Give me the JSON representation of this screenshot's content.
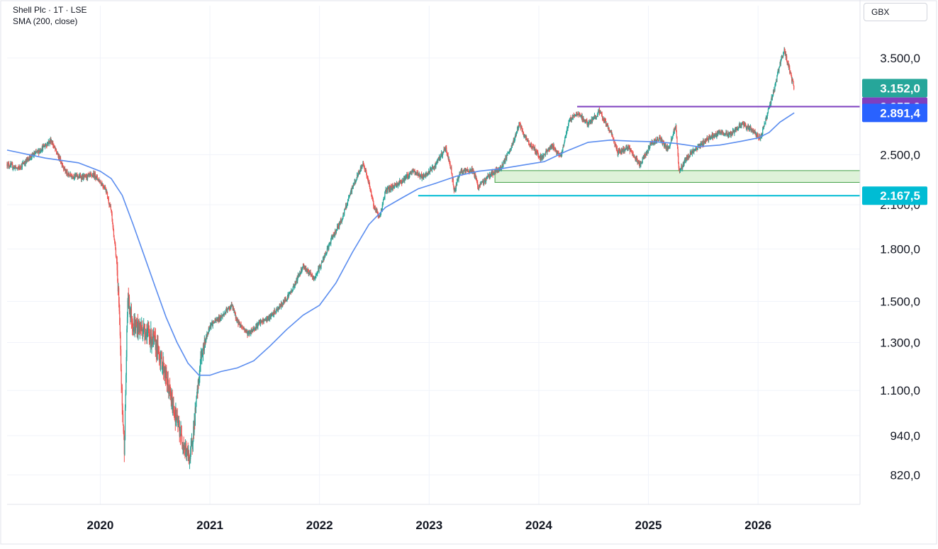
{
  "legend": {
    "symbol": "Shell Plc · 1T · LSE",
    "indicator": "SMA (200, close)"
  },
  "currency": "GBX",
  "colors": {
    "up": "#26a69a",
    "down": "#ef5350",
    "sma": "#5b8def",
    "resistance": "#7e3fbf",
    "support": "#00bcd4",
    "zone_fill": "#d8f0d2",
    "zone_stroke": "#43a047"
  },
  "chart_data": {
    "type": "candlestick",
    "title": "",
    "xlabel": "",
    "ylabel": "",
    "y_scale": "log",
    "ylim": [
      740,
      3900
    ],
    "xlim": [
      2019.15,
      2026.93
    ],
    "grid": true,
    "y_ticks": [
      {
        "value": 3500,
        "label": "3.500,0"
      },
      {
        "value": 2500,
        "label": "2.500,0"
      },
      {
        "value": 2100,
        "label": "2.100,0"
      },
      {
        "value": 1800,
        "label": "1.800,0"
      },
      {
        "value": 1500,
        "label": "1.500,0"
      },
      {
        "value": 1300,
        "label": "1.300,0"
      },
      {
        "value": 1100,
        "label": "1.100,0"
      },
      {
        "value": 940,
        "label": "940,0"
      },
      {
        "value": 820,
        "label": "820,0"
      }
    ],
    "x_ticks": [
      {
        "value": 2020.0,
        "label": "2020"
      },
      {
        "value": 2021.0,
        "label": "2021"
      },
      {
        "value": 2022.0,
        "label": "2022"
      },
      {
        "value": 2023.0,
        "label": "2023"
      },
      {
        "value": 2024.0,
        "label": "2024"
      },
      {
        "value": 2025.0,
        "label": "2025"
      },
      {
        "value": 2026.0,
        "label": "2026"
      }
    ],
    "price_anchors": [
      [
        2019.15,
        2420
      ],
      [
        2019.25,
        2380
      ],
      [
        2019.35,
        2470
      ],
      [
        2019.45,
        2540
      ],
      [
        2019.55,
        2630
      ],
      [
        2019.6,
        2520
      ],
      [
        2019.7,
        2330
      ],
      [
        2019.85,
        2310
      ],
      [
        2019.95,
        2330
      ],
      [
        2020.05,
        2220
      ],
      [
        2020.1,
        2050
      ],
      [
        2020.15,
        1720
      ],
      [
        2020.17,
        1480
      ],
      [
        2020.2,
        1040
      ],
      [
        2020.22,
        900
      ],
      [
        2020.25,
        1520
      ],
      [
        2020.3,
        1380
      ],
      [
        2020.4,
        1360
      ],
      [
        2020.5,
        1300
      ],
      [
        2020.58,
        1190
      ],
      [
        2020.65,
        1060
      ],
      [
        2020.72,
        960
      ],
      [
        2020.78,
        890
      ],
      [
        2020.82,
        870
      ],
      [
        2020.86,
        990
      ],
      [
        2020.92,
        1240
      ],
      [
        2021.0,
        1380
      ],
      [
        2021.1,
        1420
      ],
      [
        2021.2,
        1480
      ],
      [
        2021.25,
        1400
      ],
      [
        2021.35,
        1340
      ],
      [
        2021.45,
        1390
      ],
      [
        2021.55,
        1420
      ],
      [
        2021.65,
        1480
      ],
      [
        2021.75,
        1560
      ],
      [
        2021.85,
        1700
      ],
      [
        2021.95,
        1620
      ],
      [
        2022.05,
        1760
      ],
      [
        2022.12,
        1880
      ],
      [
        2022.2,
        1990
      ],
      [
        2022.3,
        2230
      ],
      [
        2022.4,
        2430
      ],
      [
        2022.45,
        2260
      ],
      [
        2022.5,
        2080
      ],
      [
        2022.55,
        2010
      ],
      [
        2022.6,
        2200
      ],
      [
        2022.75,
        2280
      ],
      [
        2022.85,
        2360
      ],
      [
        2022.95,
        2310
      ],
      [
        2023.05,
        2400
      ],
      [
        2023.15,
        2560
      ],
      [
        2023.2,
        2380
      ],
      [
        2023.23,
        2200
      ],
      [
        2023.28,
        2350
      ],
      [
        2023.4,
        2370
      ],
      [
        2023.45,
        2230
      ],
      [
        2023.55,
        2330
      ],
      [
        2023.65,
        2380
      ],
      [
        2023.75,
        2560
      ],
      [
        2023.82,
        2780
      ],
      [
        2023.88,
        2640
      ],
      [
        2023.95,
        2560
      ],
      [
        2024.02,
        2470
      ],
      [
        2024.12,
        2580
      ],
      [
        2024.2,
        2490
      ],
      [
        2024.28,
        2820
      ],
      [
        2024.35,
        2890
      ],
      [
        2024.45,
        2780
      ],
      [
        2024.55,
        2900
      ],
      [
        2024.65,
        2720
      ],
      [
        2024.72,
        2520
      ],
      [
        2024.82,
        2560
      ],
      [
        2024.92,
        2410
      ],
      [
        2025.02,
        2590
      ],
      [
        2025.1,
        2650
      ],
      [
        2025.18,
        2540
      ],
      [
        2025.25,
        2770
      ],
      [
        2025.28,
        2350
      ],
      [
        2025.35,
        2480
      ],
      [
        2025.45,
        2560
      ],
      [
        2025.55,
        2650
      ],
      [
        2025.65,
        2700
      ],
      [
        2025.75,
        2680
      ],
      [
        2025.85,
        2780
      ],
      [
        2025.95,
        2720
      ],
      [
        2026.02,
        2640
      ],
      [
        2026.08,
        2860
      ],
      [
        2026.15,
        3150
      ],
      [
        2026.2,
        3430
      ],
      [
        2026.24,
        3600
      ],
      [
        2026.28,
        3380
      ],
      [
        2026.33,
        3152
      ]
    ],
    "sma_points": [
      [
        2019.15,
        2540
      ],
      [
        2019.5,
        2470
      ],
      [
        2019.8,
        2430
      ],
      [
        2020.0,
        2360
      ],
      [
        2020.1,
        2300
      ],
      [
        2020.2,
        2170
      ],
      [
        2020.3,
        1960
      ],
      [
        2020.4,
        1760
      ],
      [
        2020.5,
        1580
      ],
      [
        2020.6,
        1420
      ],
      [
        2020.7,
        1300
      ],
      [
        2020.8,
        1210
      ],
      [
        2020.9,
        1160
      ],
      [
        2021.0,
        1160
      ],
      [
        2021.1,
        1175
      ],
      [
        2021.25,
        1190
      ],
      [
        2021.4,
        1220
      ],
      [
        2021.55,
        1285
      ],
      [
        2021.7,
        1360
      ],
      [
        2021.85,
        1430
      ],
      [
        2022.0,
        1480
      ],
      [
        2022.15,
        1600
      ],
      [
        2022.3,
        1780
      ],
      [
        2022.45,
        1960
      ],
      [
        2022.6,
        2080
      ],
      [
        2022.75,
        2150
      ],
      [
        2022.9,
        2220
      ],
      [
        2023.05,
        2260
      ],
      [
        2023.25,
        2320
      ],
      [
        2023.45,
        2360
      ],
      [
        2023.65,
        2380
      ],
      [
        2023.85,
        2410
      ],
      [
        2024.05,
        2440
      ],
      [
        2024.25,
        2530
      ],
      [
        2024.45,
        2610
      ],
      [
        2024.65,
        2630
      ],
      [
        2024.85,
        2620
      ],
      [
        2025.05,
        2615
      ],
      [
        2025.25,
        2600
      ],
      [
        2025.45,
        2570
      ],
      [
        2025.65,
        2585
      ],
      [
        2025.85,
        2620
      ],
      [
        2026.0,
        2650
      ],
      [
        2026.1,
        2700
      ],
      [
        2026.2,
        2800
      ],
      [
        2026.33,
        2891.4
      ]
    ],
    "resistance": {
      "value": 2955,
      "x_start": 2024.35,
      "label": "2.955,0"
    },
    "support": {
      "value": 2167.5,
      "x_start": 2022.9,
      "label": "2.167,5"
    },
    "zone": {
      "low": 2270,
      "high": 2365,
      "x_start": 2023.6
    },
    "last_price": {
      "value": 3152,
      "label": "3.152,0"
    },
    "sma_last": {
      "value": 2891.4,
      "label": "2.891,4"
    }
  }
}
